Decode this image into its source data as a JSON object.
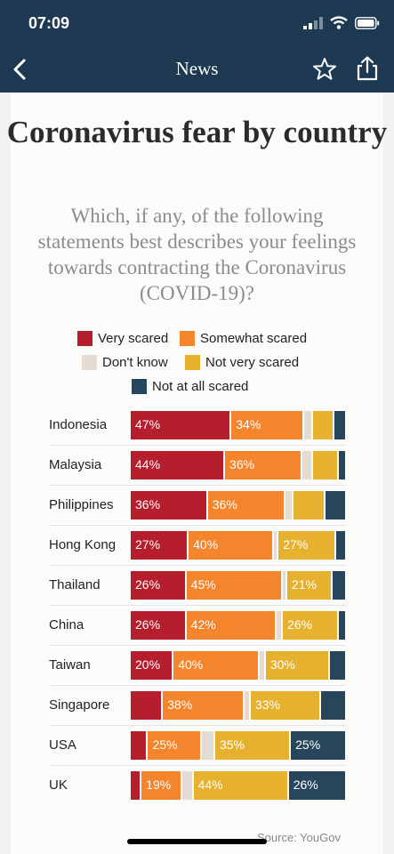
{
  "status_bar": {
    "time": "07:09"
  },
  "nav": {
    "title": "News",
    "icons": [
      "back-chevron-icon",
      "star-icon",
      "share-icon"
    ]
  },
  "source": "Source: YouGov",
  "chart_data": {
    "type": "bar",
    "orientation": "horizontal",
    "stacked": true,
    "title": "Coronavirus fear by country",
    "subtitle": "Which, if any, of the following statements best describes your feelings towards contracting the Coronavirus (COVID-19)?",
    "xlim": [
      0,
      100
    ],
    "legend_position": "top",
    "categories": [
      "Indonesia",
      "Malaysia",
      "Philippines",
      "Hong Kong",
      "Thailand",
      "China",
      "Taiwan",
      "Singapore",
      "USA",
      "UK"
    ],
    "series": [
      {
        "name": "Very scared",
        "color": "#b51f2d",
        "values": [
          47,
          44,
          36,
          27,
          26,
          26,
          20,
          15,
          8,
          5
        ],
        "labels": [
          "47%",
          "44%",
          "36%",
          "27%",
          "26%",
          "26%",
          "20%",
          "",
          "",
          ""
        ]
      },
      {
        "name": "Somewhat scared",
        "color": "#f4852c",
        "values": [
          34,
          36,
          36,
          40,
          45,
          42,
          40,
          38,
          25,
          19
        ],
        "labels": [
          "34%",
          "36%",
          "36%",
          "40%",
          "45%",
          "42%",
          "40%",
          "38%",
          "25%",
          "19%"
        ]
      },
      {
        "name": "Don't know",
        "color": "#e4dbd3",
        "values": [
          4,
          5,
          4,
          2,
          2,
          3,
          3,
          3,
          6,
          5
        ],
        "labels": [
          "",
          "",
          "",
          "",
          "",
          "",
          "",
          "",
          "",
          ""
        ]
      },
      {
        "name": "Not very scared",
        "color": "#e6b12f",
        "values": [
          10,
          12,
          15,
          27,
          21,
          26,
          30,
          33,
          35,
          44
        ],
        "labels": [
          "",
          "",
          "",
          "27%",
          "21%",
          "26%",
          "30%",
          "33%",
          "35%",
          "44%"
        ]
      },
      {
        "name": "Not at all scared",
        "color": "#27465b",
        "values": [
          5,
          3,
          9,
          4,
          6,
          3,
          7,
          11,
          25,
          26
        ],
        "labels": [
          "",
          "",
          "",
          "",
          "",
          "",
          "",
          "",
          "25%",
          "26%"
        ]
      }
    ]
  }
}
